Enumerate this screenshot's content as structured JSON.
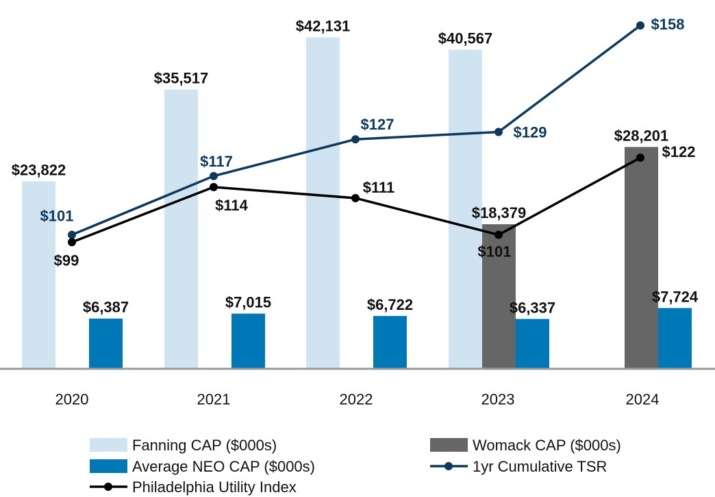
{
  "chart_data": {
    "type": "bar",
    "categories": [
      "2020",
      "2021",
      "2022",
      "2023",
      "2024"
    ],
    "ylim": [
      0,
      48000
    ],
    "tsr_ylim": [
      70,
      168
    ],
    "series": [
      {
        "name": "Fanning CAP ($000s)",
        "kind": "bar",
        "color": "#cfe3f0",
        "values": [
          23822,
          35517,
          42131,
          40567,
          null
        ],
        "labels": [
          "$23,822",
          "$35,517",
          "$42,131",
          "$40,567",
          ""
        ]
      },
      {
        "name": "Womack CAP ($000s)",
        "kind": "bar",
        "color": "#666666",
        "values": [
          null,
          null,
          null,
          18379,
          28201
        ],
        "labels": [
          "",
          "",
          "",
          "$18,379",
          "$28,201"
        ]
      },
      {
        "name": "Average NEO CAP ($000s)",
        "kind": "bar",
        "color": "#0077b6",
        "values": [
          6387,
          7015,
          6722,
          6337,
          7724
        ],
        "labels": [
          "$6,387",
          "$7,015",
          "$6,722",
          "$6,337",
          "$7,724"
        ]
      },
      {
        "name": "1yr Cumulative TSR",
        "kind": "line",
        "color": "#0d3a5c",
        "values": [
          101,
          117,
          127,
          129,
          158
        ],
        "labels": [
          "$101",
          "$117",
          "$127",
          "$129",
          "$158"
        ]
      },
      {
        "name": "Philadelphia Utility Index",
        "kind": "line",
        "color": "#000000",
        "values": [
          99,
          114,
          111,
          101,
          122
        ],
        "labels": [
          "$99",
          "$114",
          "$111",
          "$101",
          "$122"
        ]
      }
    ],
    "legend": [
      {
        "label": "Fanning CAP ($000s)",
        "swatch": "bar",
        "color": "#cfe3f0"
      },
      {
        "label": "Womack CAP ($000s)",
        "swatch": "bar",
        "color": "#666666"
      },
      {
        "label": "Average NEO CAP ($000s)",
        "swatch": "bar",
        "color": "#0077b6"
      },
      {
        "label": "1yr Cumulative TSR",
        "swatch": "line",
        "color": "#0d3a5c"
      },
      {
        "label": "Philadelphia Utility Index",
        "swatch": "line",
        "color": "#000000"
      }
    ],
    "legend_position": "bottom",
    "grid": false
  }
}
